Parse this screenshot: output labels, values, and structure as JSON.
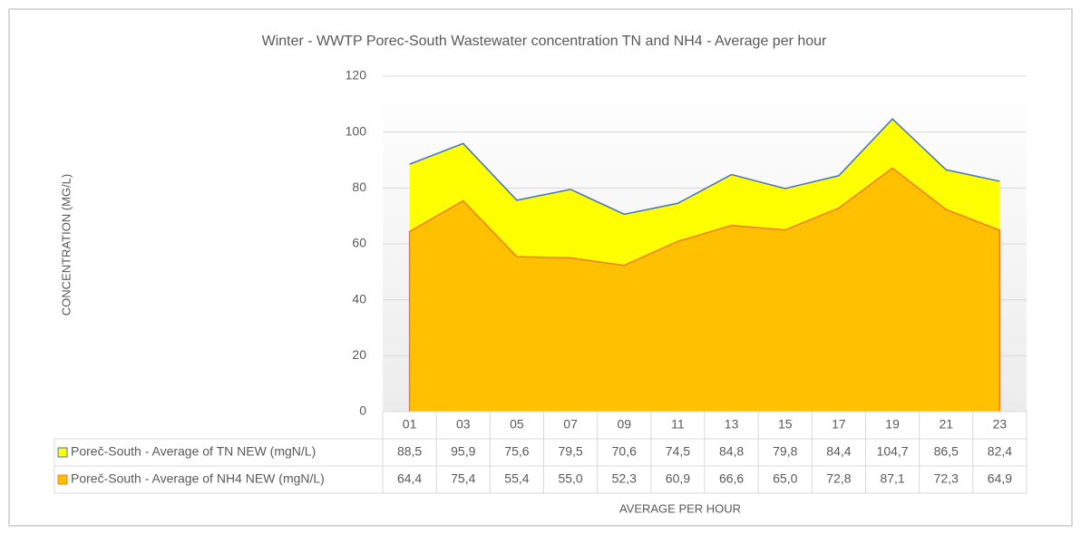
{
  "chart_data": {
    "type": "area",
    "title": "Winter - WWTP Porec-South Wastewater concentration TN and NH4 - Average per hour",
    "x_label": "AVERAGE PER HOUR",
    "y_label": "CONCENTRATION (MG/L)",
    "categories": [
      "01",
      "03",
      "05",
      "07",
      "09",
      "11",
      "13",
      "15",
      "17",
      "19",
      "21",
      "23"
    ],
    "series": [
      {
        "name": "Poreč-South - Average of TN  NEW (mgN/L)",
        "color": "#ffff00",
        "line_color": "#4472c4",
        "values": [
          88.5,
          95.9,
          75.6,
          79.5,
          70.6,
          74.5,
          84.8,
          79.8,
          84.4,
          104.7,
          86.5,
          82.4
        ],
        "value_labels": [
          "88,5",
          "95,9",
          "75,6",
          "79,5",
          "70,6",
          "74,5",
          "84,8",
          "79,8",
          "84,4",
          "104,7",
          "86,5",
          "82,4"
        ]
      },
      {
        "name": "Poreč-South - Average of NH4 NEW (mgN/L)",
        "color": "#ffc000",
        "line_color": "#ed7d31",
        "values": [
          64.4,
          75.4,
          55.4,
          55.0,
          52.3,
          60.9,
          66.6,
          65.0,
          72.8,
          87.1,
          72.3,
          64.9
        ],
        "value_labels": [
          "64,4",
          "75,4",
          "55,4",
          "55,0",
          "52,3",
          "60,9",
          "66,6",
          "65,0",
          "72,8",
          "87,1",
          "72,3",
          "64,9"
        ]
      }
    ],
    "ylim": [
      0,
      120
    ],
    "yticks": [
      0,
      20,
      40,
      60,
      80,
      100,
      120
    ],
    "grid": true
  }
}
